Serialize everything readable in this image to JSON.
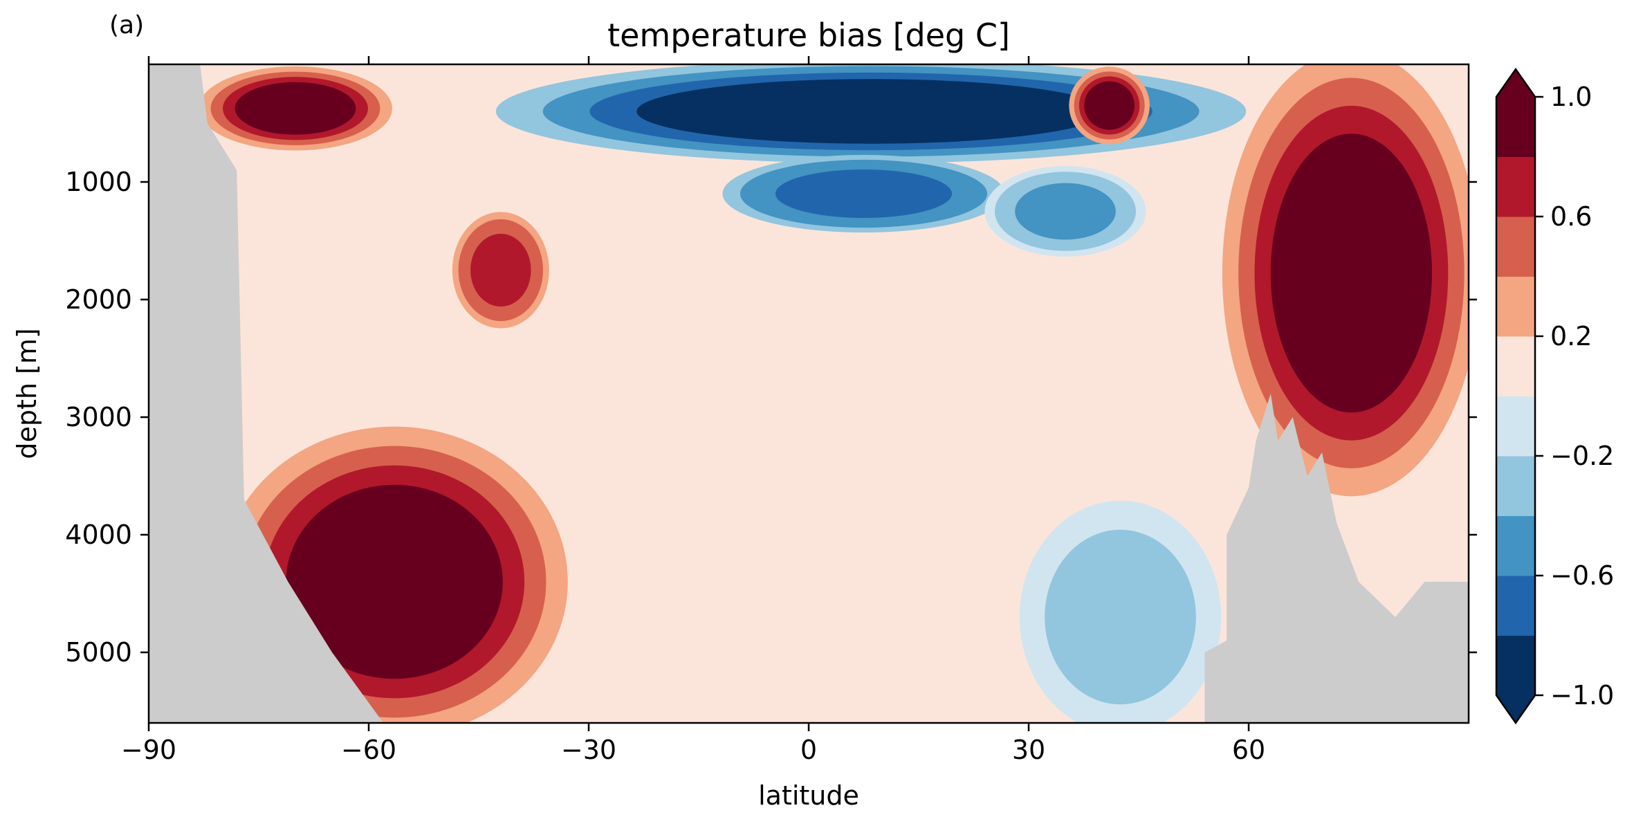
{
  "chart_data": {
    "type": "heatmap",
    "panel_label": "(a)",
    "title": "temperature bias [deg C]",
    "xlabel": "latitude",
    "ylabel": "depth [m]",
    "xlim": [
      -90,
      90
    ],
    "ylim": [
      5600,
      0
    ],
    "xticks": [
      -90,
      -60,
      -30,
      0,
      30,
      60
    ],
    "xtick_labels": [
      "−90",
      "−60",
      "−30",
      "0",
      "30",
      "60"
    ],
    "yticks": [
      1000,
      2000,
      3000,
      4000,
      5000
    ],
    "ytick_labels": [
      "1000",
      "2000",
      "3000",
      "4000",
      "5000"
    ],
    "colormap": "RdBu_r",
    "colorbar": {
      "levels": [
        -1.0,
        -0.8,
        -0.6,
        -0.4,
        -0.2,
        0.0,
        0.2,
        0.4,
        0.6,
        0.8,
        1.0
      ],
      "colors": [
        "#053061",
        "#2166ac",
        "#4393c3",
        "#92c5de",
        "#d1e5f0",
        "#fbe5da",
        "#f4a582",
        "#d6604d",
        "#b2182b",
        "#67001f"
      ],
      "extend": "both",
      "extend_low_color": "#053061",
      "extend_high_color": "#67001f",
      "ticks": [
        1.0,
        0.6,
        0.2,
        -0.2,
        -0.6,
        -1.0
      ],
      "tick_labels": [
        "1.0",
        "0.6",
        "0.2",
        "−0.2",
        "−0.6",
        "−1.0"
      ]
    },
    "land_color": "#cccccc",
    "background_value": 0.05,
    "regions": [
      {
        "name": "deep-south-cold-water",
        "lat": [
          -78,
          -35
        ],
        "depth": [
          3200,
          5600
        ],
        "value": 0.9
      },
      {
        "name": "south-surface-warm",
        "lat": [
          -82,
          -58
        ],
        "depth": [
          50,
          700
        ],
        "value": 0.8
      },
      {
        "name": "south-mid-warm",
        "lat": [
          -48,
          -36
        ],
        "depth": [
          1300,
          2200
        ],
        "value": 0.7
      },
      {
        "name": "upper-tropical-cool",
        "lat": [
          -38,
          55
        ],
        "depth": [
          0,
          800
        ],
        "value": -0.9
      },
      {
        "name": "upper-mid-cool",
        "lat": [
          -10,
          25
        ],
        "depth": [
          800,
          1400
        ],
        "value": -0.7
      },
      {
        "name": "n-thermocline-cool",
        "lat": [
          25,
          45
        ],
        "depth": [
          900,
          1600
        ],
        "value": -0.5
      },
      {
        "name": "north-surface-warm",
        "lat": [
          36,
          46
        ],
        "depth": [
          50,
          650
        ],
        "value": 0.9
      },
      {
        "name": "deep-north-cool",
        "lat": [
          30,
          55
        ],
        "depth": [
          3800,
          5600
        ],
        "value": -0.3
      },
      {
        "name": "arctic-warm",
        "lat": [
          58,
          90
        ],
        "depth": [
          50,
          3500
        ],
        "value": 0.9
      }
    ]
  }
}
